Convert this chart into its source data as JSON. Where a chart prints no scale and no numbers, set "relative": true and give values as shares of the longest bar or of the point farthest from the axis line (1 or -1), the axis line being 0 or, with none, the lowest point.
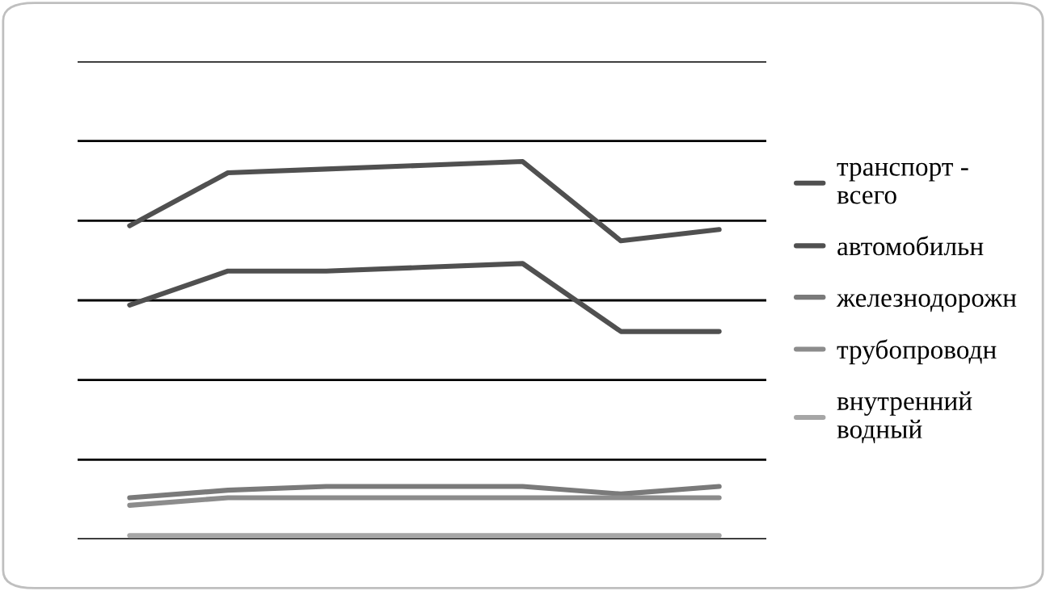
{
  "chart_data": {
    "type": "line",
    "relative": true,
    "categories": [
      null,
      null,
      null,
      null,
      null,
      null,
      null
    ],
    "series": [
      {
        "name": "транспорт - всего",
        "color": "#505050",
        "values": [
          0.83,
          0.97,
          0.98,
          0.99,
          1.0,
          0.79,
          0.82
        ]
      },
      {
        "name": "автомобильн",
        "color": "#505050",
        "values": [
          0.62,
          0.71,
          0.71,
          0.72,
          0.73,
          0.55,
          0.55
        ]
      },
      {
        "name": "железнодорожн",
        "color": "#7a7a7a",
        "values": [
          0.11,
          0.13,
          0.14,
          0.14,
          0.14,
          0.12,
          0.14
        ]
      },
      {
        "name": "трубопроводн",
        "color": "#8c8c8c",
        "values": [
          0.09,
          0.11,
          0.11,
          0.11,
          0.11,
          0.11,
          0.11
        ]
      },
      {
        "name": "внутренний водный",
        "color": "#a6a6a6",
        "values": [
          0.01,
          0.01,
          0.01,
          0.01,
          0.01,
          0.01,
          0.01
        ]
      }
    ],
    "grid": "y",
    "legend": "right",
    "marker": "none",
    "line_style": "solid"
  }
}
